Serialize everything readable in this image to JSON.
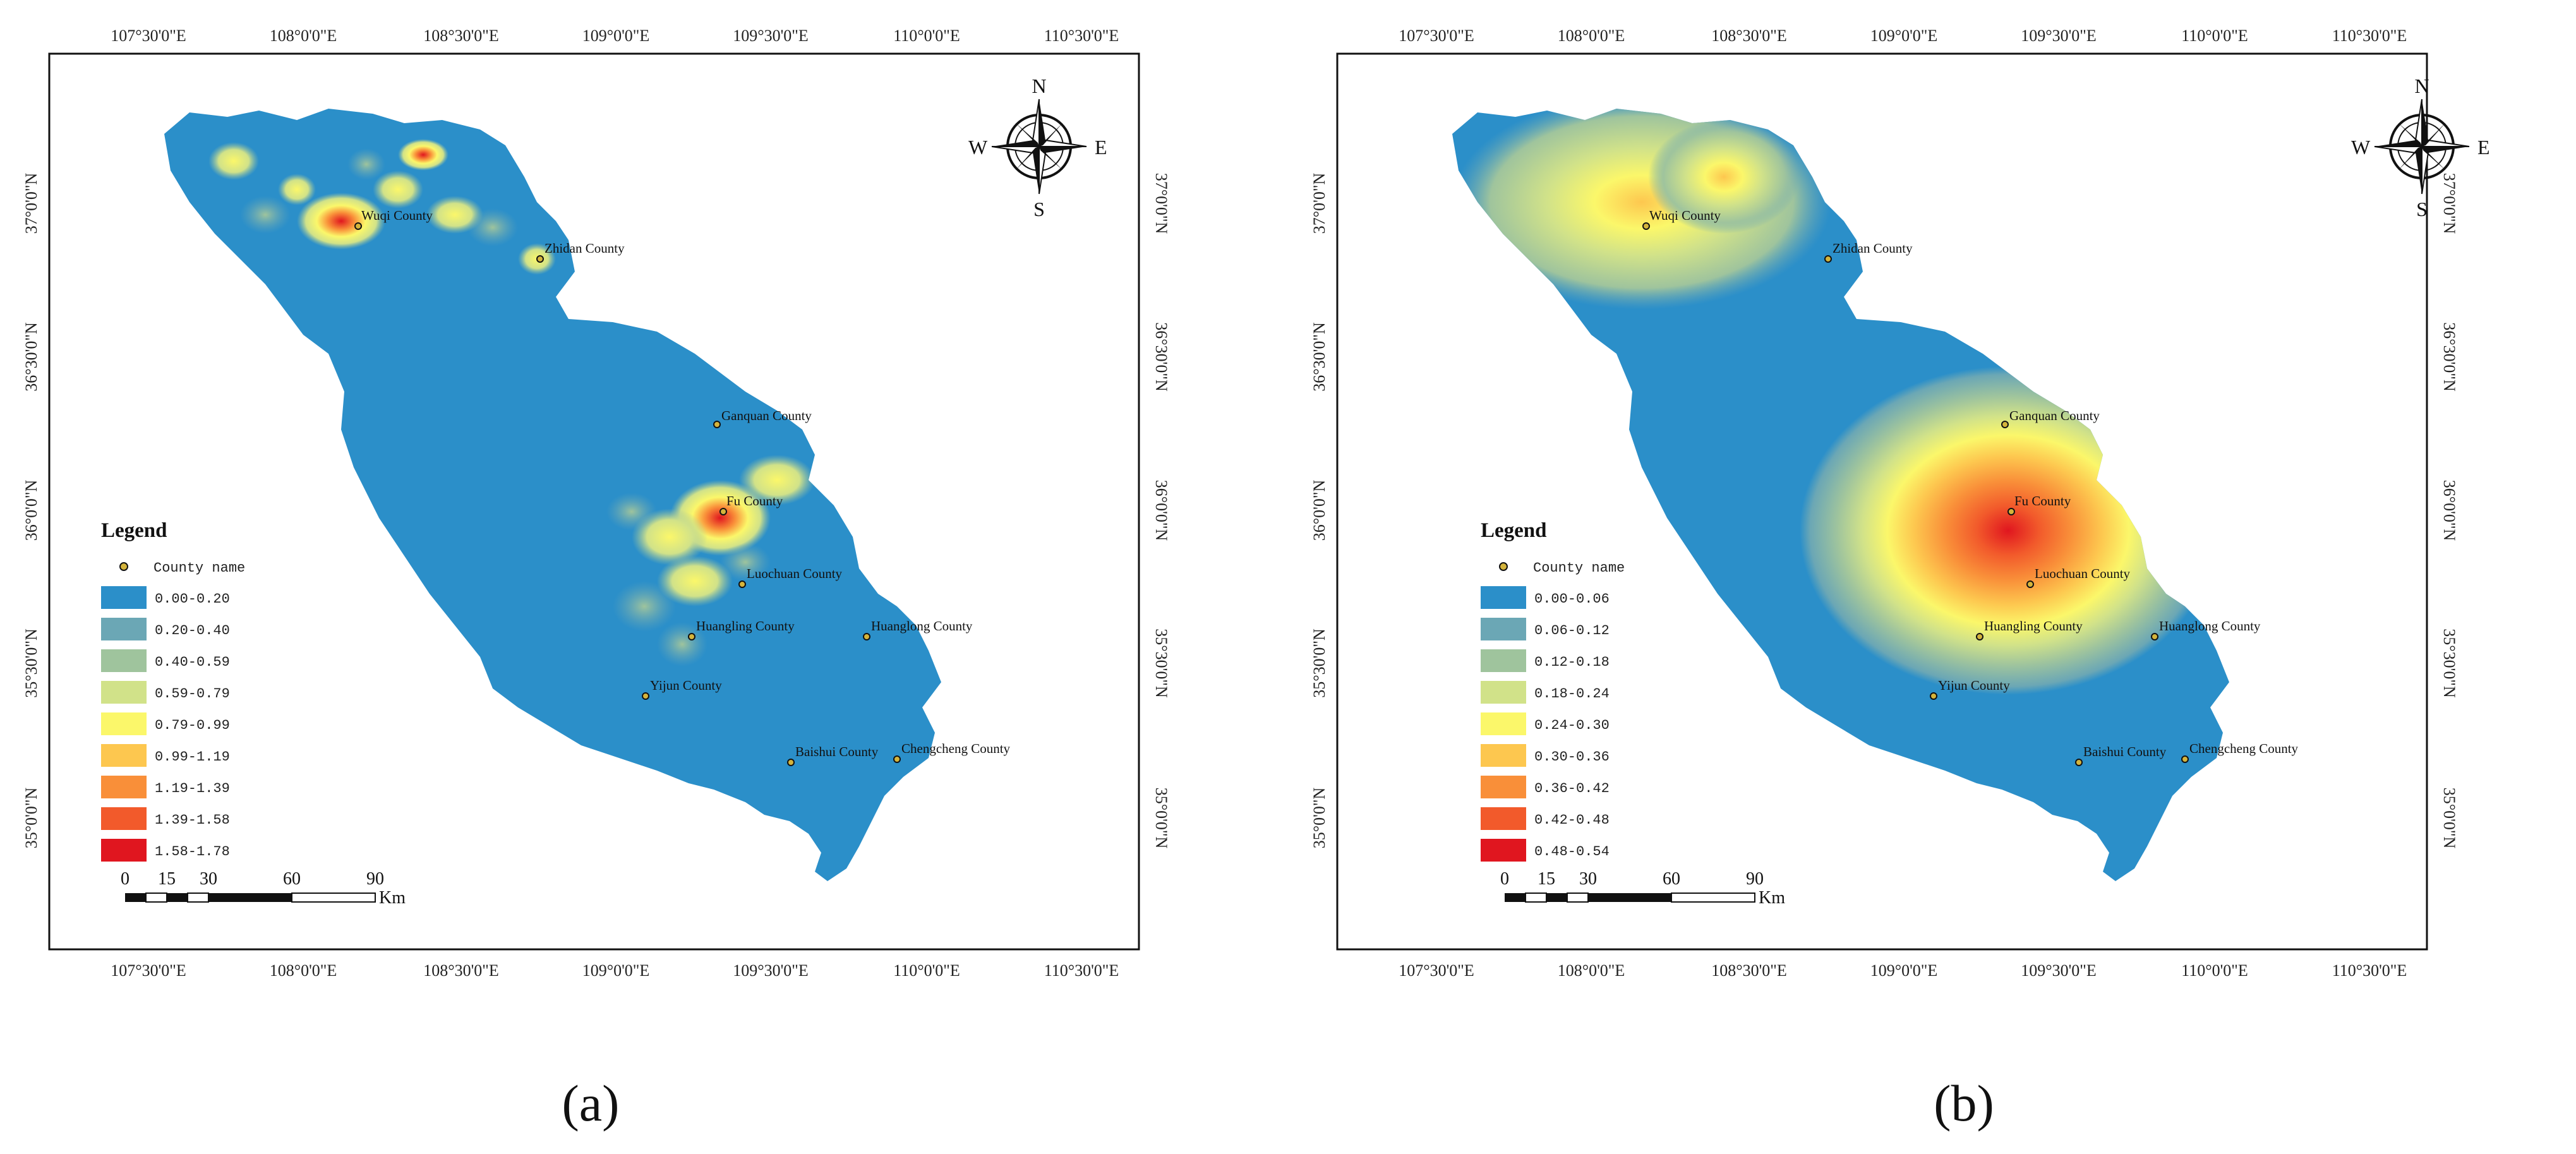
{
  "panels": [
    {
      "caption": "(a)",
      "legend_title": "Legend",
      "county_legend_label": "County name",
      "classes": [
        {
          "label": "0.00-0.20",
          "color": "#2b8fc9"
        },
        {
          "label": "0.20-0.40",
          "color": "#6ba7b5"
        },
        {
          "label": "0.40-0.59",
          "color": "#9fc49d"
        },
        {
          "label": "0.59-0.79",
          "color": "#d1e289"
        },
        {
          "label": "0.79-0.99",
          "color": "#fbf76a"
        },
        {
          "label": "0.99-1.19",
          "color": "#fdc74f"
        },
        {
          "label": "1.19-1.39",
          "color": "#f98f39"
        },
        {
          "label": "1.39-1.58",
          "color": "#f25a2b"
        },
        {
          "label": "1.58-1.78",
          "color": "#e0161f"
        }
      ]
    },
    {
      "caption": "(b)",
      "legend_title": "Legend",
      "county_legend_label": "County name",
      "classes": [
        {
          "label": "0.00-0.06",
          "color": "#2b8fc9"
        },
        {
          "label": "0.06-0.12",
          "color": "#6ba7b5"
        },
        {
          "label": "0.12-0.18",
          "color": "#9fc49d"
        },
        {
          "label": "0.18-0.24",
          "color": "#d1e289"
        },
        {
          "label": "0.24-0.30",
          "color": "#fbf76a"
        },
        {
          "label": "0.30-0.36",
          "color": "#fdc74f"
        },
        {
          "label": "0.36-0.42",
          "color": "#f98f39"
        },
        {
          "label": "0.42-0.48",
          "color": "#f25a2b"
        },
        {
          "label": "0.48-0.54",
          "color": "#e0161f"
        }
      ]
    }
  ],
  "longitude_labels": [
    "107°30'0\"E",
    "108°0'0\"E",
    "108°30'0\"E",
    "109°0'0\"E",
    "109°30'0\"E",
    "110°0'0\"E",
    "110°30'0\"E"
  ],
  "latitude_labels": [
    "37°0'0\"N",
    "36°30'0\"N",
    "36°0'0\"N",
    "35°30'0\"N",
    "35°0'0\"N"
  ],
  "counties": [
    "Wuqi County",
    "Zhidan County",
    "Ganquan County",
    "Fu County",
    "Luochuan County",
    "Huangling County",
    "Huanglong County",
    "Yijun County",
    "Baishui County",
    "Chengcheng County"
  ],
  "compass": {
    "n": "N",
    "s": "S",
    "e": "E",
    "w": "W"
  },
  "scale_bar": {
    "ticks": [
      "0",
      "15",
      "30",
      "60",
      "90"
    ],
    "unit": "Km"
  }
}
